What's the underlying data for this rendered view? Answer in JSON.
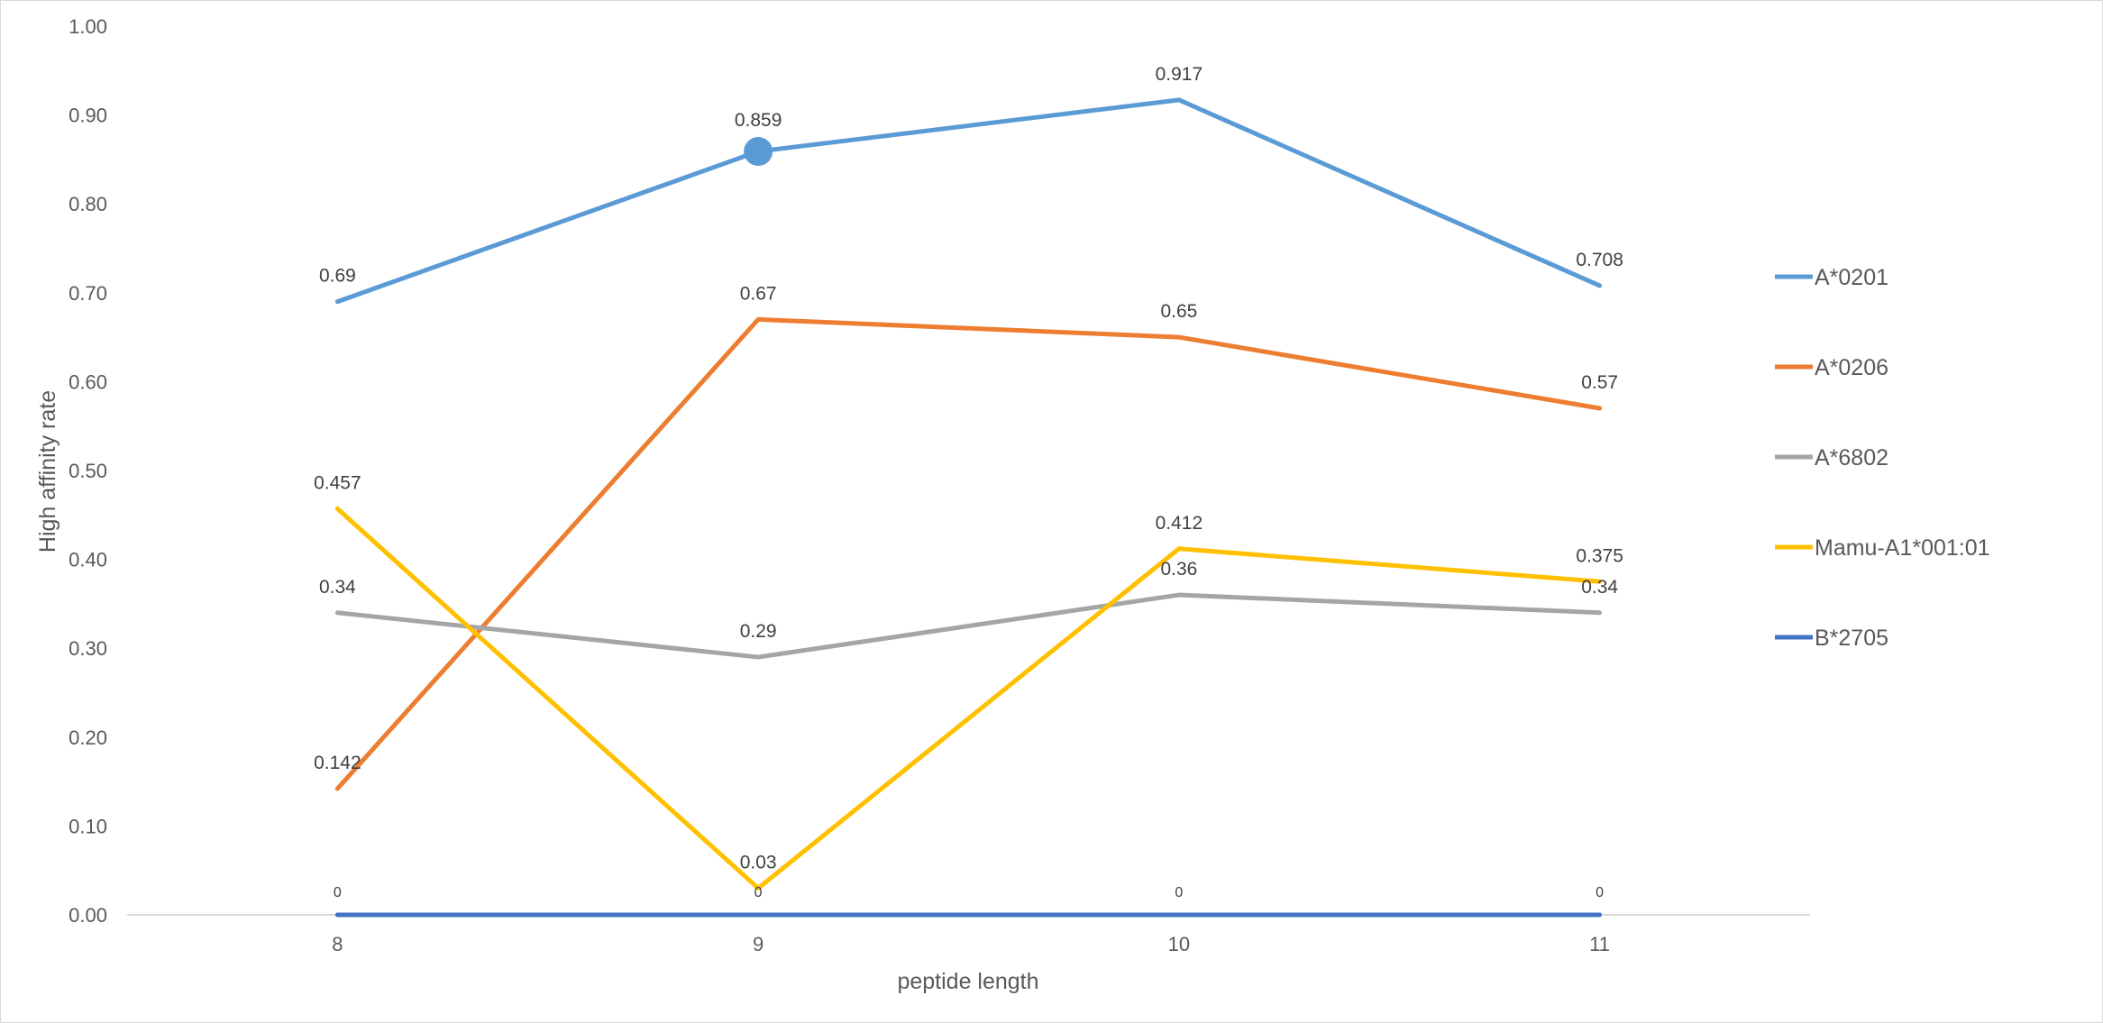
{
  "chart_data": {
    "type": "line",
    "title": "",
    "xlabel": "peptide length",
    "ylabel": "High affinity rate",
    "categories": [
      "8",
      "9",
      "10",
      "11"
    ],
    "ylim": [
      0,
      1
    ],
    "yticks": [
      "0.00",
      "0.10",
      "0.20",
      "0.30",
      "0.40",
      "0.50",
      "0.60",
      "0.70",
      "0.80",
      "0.90",
      "1.00"
    ],
    "grid": false,
    "legend_position": "right",
    "series": [
      {
        "name": "A*0201",
        "color": "#5B9BD5",
        "values": [
          0.69,
          0.859,
          0.917,
          0.708
        ],
        "labels": [
          "0.69",
          "0.859",
          "0.917",
          "0.708"
        ],
        "highlight_marker_index": 1
      },
      {
        "name": "A*0206",
        "color": "#ED7D31",
        "values": [
          0.142,
          0.67,
          0.65,
          0.57
        ],
        "labels": [
          "0.142",
          "0.67",
          "0.65",
          "0.57"
        ]
      },
      {
        "name": "A*6802",
        "color": "#A5A5A5",
        "values": [
          0.34,
          0.29,
          0.36,
          0.34
        ],
        "labels": [
          "0.34",
          "0.29",
          "0.36",
          "0.34"
        ]
      },
      {
        "name": "Mamu-A1*001:01",
        "color": "#FFC000",
        "values": [
          0.457,
          0.03,
          0.412,
          0.375
        ],
        "labels": [
          "0.457",
          "0.03",
          "0.412",
          "0.375"
        ]
      },
      {
        "name": "B*2705",
        "color": "#4472C4",
        "values": [
          0,
          0,
          0,
          0
        ],
        "labels": [
          "0",
          "0",
          "0",
          "0"
        ],
        "small_labels": true
      }
    ]
  }
}
